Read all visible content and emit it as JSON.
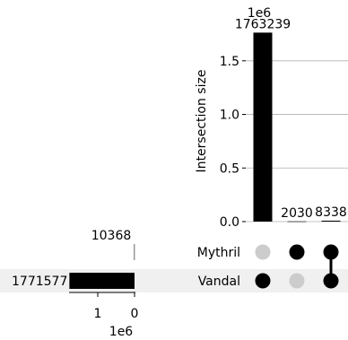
{
  "chart_data": {
    "type": "upset",
    "intersection_size_axis": {
      "ylabel": "Intersection size",
      "offset_text": "1e6",
      "ticks": [
        0.0,
        0.5,
        1.0,
        1.5
      ],
      "tick_labels": [
        "0.0",
        "0.5",
        "1.0",
        "1.5"
      ],
      "ylim": [
        0,
        1850000
      ],
      "grid": true
    },
    "intersections": [
      {
        "label": "1763239",
        "value": 1763239,
        "members": [
          "Vandal"
        ]
      },
      {
        "label": "2030",
        "value": 2030,
        "members": [
          "Mythril"
        ]
      },
      {
        "label": "8338",
        "value": 8338,
        "members": [
          "Mythril",
          "Vandal"
        ]
      }
    ],
    "sets": [
      {
        "name": "Mythril",
        "size_label": "10368",
        "size": 10368
      },
      {
        "name": "Vandal",
        "size_label": "1771577",
        "size": 1771577
      }
    ],
    "set_size_axis": {
      "offset_text": "1e6",
      "ticks": [
        1,
        0
      ],
      "tick_labels": [
        "1",
        "0"
      ],
      "xlim": [
        0,
        1.9
      ],
      "reversed": true
    },
    "colors": {
      "bar": "#000000",
      "dot_active": "#000000",
      "dot_inactive": "#cccccc",
      "shade": "#f0f0f0",
      "grid": "#b0b0b0"
    }
  }
}
